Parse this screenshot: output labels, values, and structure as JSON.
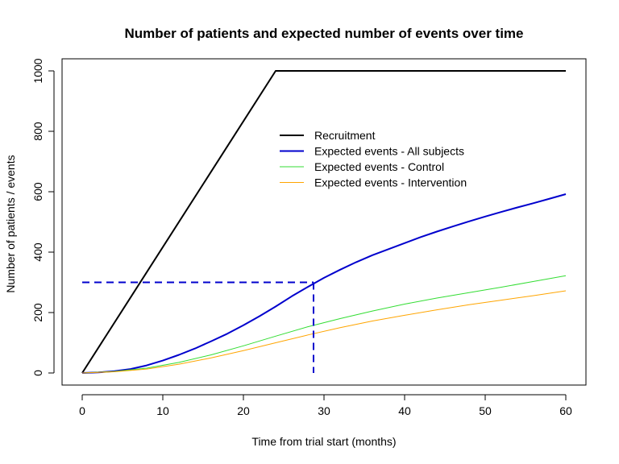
{
  "chart_data": {
    "type": "line",
    "title": "Number of patients and expected number of events over time",
    "xlabel": "Time from trial start (months)",
    "ylabel": "Number of patients / events",
    "xlim": [
      -2.5,
      62.5
    ],
    "ylim": [
      -40,
      1040
    ],
    "xticks": [
      0,
      10,
      20,
      30,
      40,
      50,
      60
    ],
    "yticks": [
      0,
      200,
      400,
      600,
      800,
      1000
    ],
    "grid": false,
    "legend_position": "center-right",
    "series": [
      {
        "name": "Recruitment",
        "color": "#000000",
        "x": [
          0,
          24,
          60
        ],
        "y": [
          0,
          1000,
          1000
        ]
      },
      {
        "name": "Expected events - All subjects",
        "color": "#0000CD",
        "x": [
          0,
          2,
          4,
          6,
          8,
          10,
          12,
          14,
          16,
          18,
          20,
          22,
          24,
          26,
          28,
          30,
          32,
          34,
          36,
          38,
          40,
          42,
          44,
          46,
          48,
          50,
          52,
          54,
          56,
          58,
          60
        ],
        "y": [
          0,
          2,
          6,
          13,
          25,
          41,
          60,
          81,
          105,
          130,
          158,
          188,
          220,
          254,
          285,
          315,
          342,
          367,
          390,
          410,
          430,
          450,
          468,
          485,
          502,
          518,
          533,
          548,
          562,
          577,
          592
        ]
      },
      {
        "name": "Expected events - Control",
        "color": "#33DD33",
        "x": [
          0,
          4,
          8,
          12,
          16,
          20,
          24,
          28,
          32,
          36,
          40,
          44,
          48,
          52,
          56,
          60
        ],
        "y": [
          0,
          5,
          16,
          35,
          60,
          90,
          122,
          153,
          180,
          205,
          228,
          248,
          266,
          284,
          303,
          322
        ]
      },
      {
        "name": "Expected events - Intervention",
        "color": "#FFA500",
        "x": [
          0,
          4,
          8,
          12,
          16,
          20,
          24,
          28,
          32,
          36,
          40,
          44,
          48,
          52,
          56,
          60
        ],
        "y": [
          0,
          4,
          13,
          29,
          50,
          74,
          100,
          126,
          150,
          172,
          191,
          209,
          226,
          241,
          256,
          272
        ]
      }
    ],
    "reference_lines": {
      "color": "#0000CD",
      "dashed": true,
      "event_count": 300,
      "time": 28.7
    }
  }
}
